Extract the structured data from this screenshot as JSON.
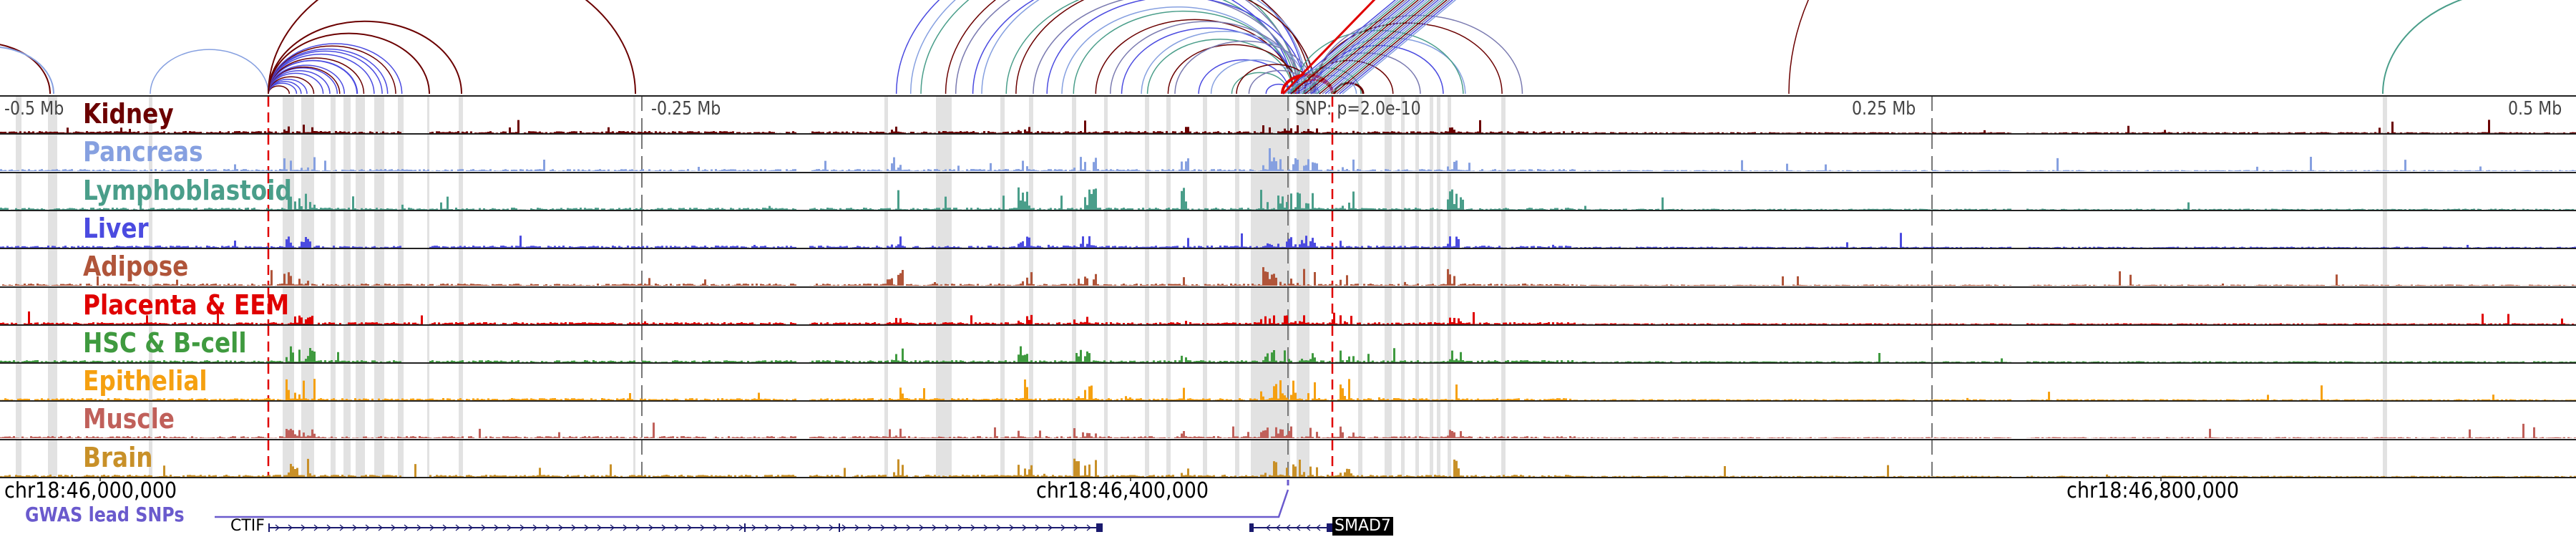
{
  "axis_top": {
    "labels": [
      "-0.5 Mb",
      "-0.25 Mb",
      "0.25 Mb",
      "0.5 Mb"
    ],
    "snp_label": "SNP: p=2.0e-10"
  },
  "tracks": [
    {
      "name": "Kidney",
      "color": "#6b0000"
    },
    {
      "name": "Pancreas",
      "color": "#86a0e0"
    },
    {
      "name": "Lymphoblastoid",
      "color": "#4a9e8a"
    },
    {
      "name": "Liver",
      "color": "#4b4be0"
    },
    {
      "name": "Adipose",
      "color": "#b0553a"
    },
    {
      "name": "Placenta & EEM",
      "color": "#e00000"
    },
    {
      "name": "HSC & B-cell",
      "color": "#3f9a3f"
    },
    {
      "name": "Epithelial",
      "color": "#f5a010"
    },
    {
      "name": "Muscle",
      "color": "#c0605a"
    },
    {
      "name": "Brain",
      "color": "#c89028"
    }
  ],
  "axis_bottom": {
    "labels": [
      "chr18:46,000,000",
      "chr18:46,400,000",
      "chr18:46,800,000"
    ]
  },
  "gwas": {
    "label": "GWAS lead SNPs",
    "color": "#6a5acd"
  },
  "genes": [
    {
      "name": "CTIF",
      "strand": "+"
    },
    {
      "name": "SMAD7",
      "strand": "-"
    }
  ],
  "colors": {
    "snp_marker": "#e00000",
    "highlight": "#e2e2e2",
    "gene": "#1a1a6e"
  }
}
